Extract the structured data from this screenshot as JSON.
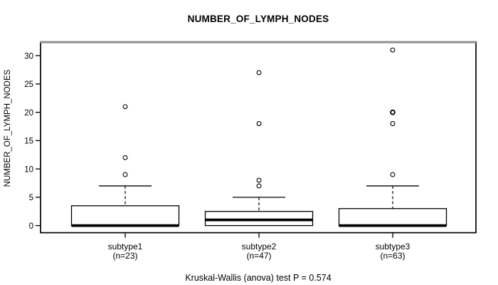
{
  "title": "NUMBER_OF_LYMPH_NODES",
  "caption": "Kruskal-Wallis (anova) test P = 0.574",
  "chart_data": {
    "type": "boxplot",
    "title": "NUMBER_OF_LYMPH_NODES",
    "ylabel": "NUMBER_OF_LYMPH_NODES",
    "xlabel": "",
    "ylim": [
      0,
      31
    ],
    "yticks": [
      0,
      5,
      10,
      15,
      20,
      25,
      30
    ],
    "grid": false,
    "legend": "none",
    "caption": "Kruskal-Wallis (anova) test P = 0.574",
    "groups": [
      {
        "label": "subtype1",
        "sublabel": "(n=23)",
        "n": 23,
        "median": 0,
        "q1": 0,
        "q3": 3.5,
        "whisker_low": 0,
        "whisker_high": 7,
        "outliers": [
          9,
          12,
          21
        ]
      },
      {
        "label": "subtype2",
        "sublabel": "(n=47)",
        "n": 47,
        "median": 1,
        "q1": 0,
        "q3": 2.5,
        "whisker_low": 0,
        "whisker_high": 5,
        "outliers": [
          7,
          8,
          18,
          27
        ]
      },
      {
        "label": "subtype3",
        "sublabel": "(n=63)",
        "n": 63,
        "median": 0,
        "q1": 0,
        "q3": 3,
        "whisker_low": 0,
        "whisker_high": 7,
        "outliers": [
          9,
          18,
          20,
          20,
          31
        ]
      }
    ]
  }
}
